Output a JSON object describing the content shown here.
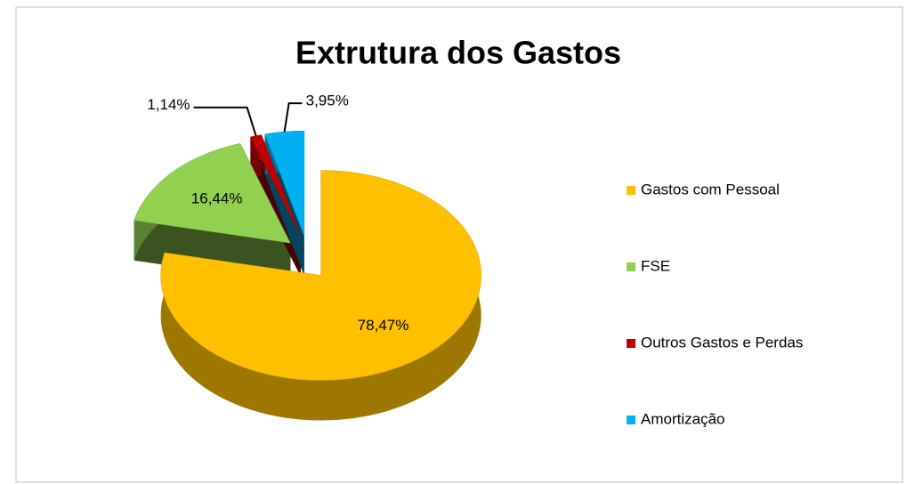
{
  "chart_data": {
    "type": "pie",
    "title": "Extrutura dos  Gastos",
    "categories": [
      "Gastos com Pessoal",
      "FSE",
      "Outros Gastos e Perdas",
      "Amortização"
    ],
    "values": [
      78.47,
      16.44,
      1.14,
      3.95
    ],
    "value_labels": [
      "78,47%",
      "16,44%",
      "1,14%",
      "3,95%"
    ],
    "colors": [
      "#ffc000",
      "#92d050",
      "#c00000",
      "#00b0f0"
    ],
    "legend": "right"
  }
}
